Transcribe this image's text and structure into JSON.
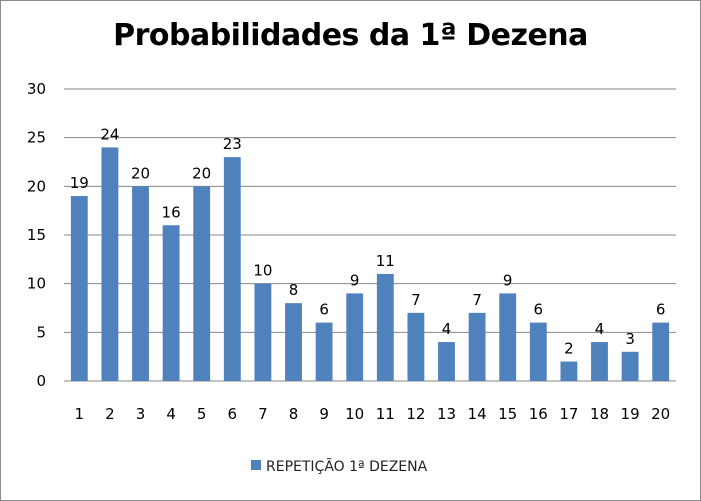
{
  "chart_data": {
    "type": "bar",
    "title": "Probabilidades da 1ª Dezena",
    "categories": [
      "1",
      "2",
      "3",
      "4",
      "5",
      "6",
      "7",
      "8",
      "9",
      "10",
      "11",
      "12",
      "13",
      "14",
      "15",
      "16",
      "17",
      "18",
      "19",
      "20"
    ],
    "series": [
      {
        "name": "REPETIÇÃO 1ª DEZENA",
        "values": [
          19,
          24,
          20,
          16,
          20,
          23,
          10,
          8,
          6,
          9,
          11,
          7,
          4,
          7,
          9,
          6,
          2,
          4,
          3,
          6
        ]
      }
    ],
    "ylim": [
      0,
      30
    ],
    "yticks": [
      0,
      5,
      10,
      15,
      20,
      25,
      30
    ],
    "grid": true,
    "legend_position": "bottom",
    "data_labels": true,
    "bar_color": "#4f81bd",
    "grid_color": "#878787"
  }
}
